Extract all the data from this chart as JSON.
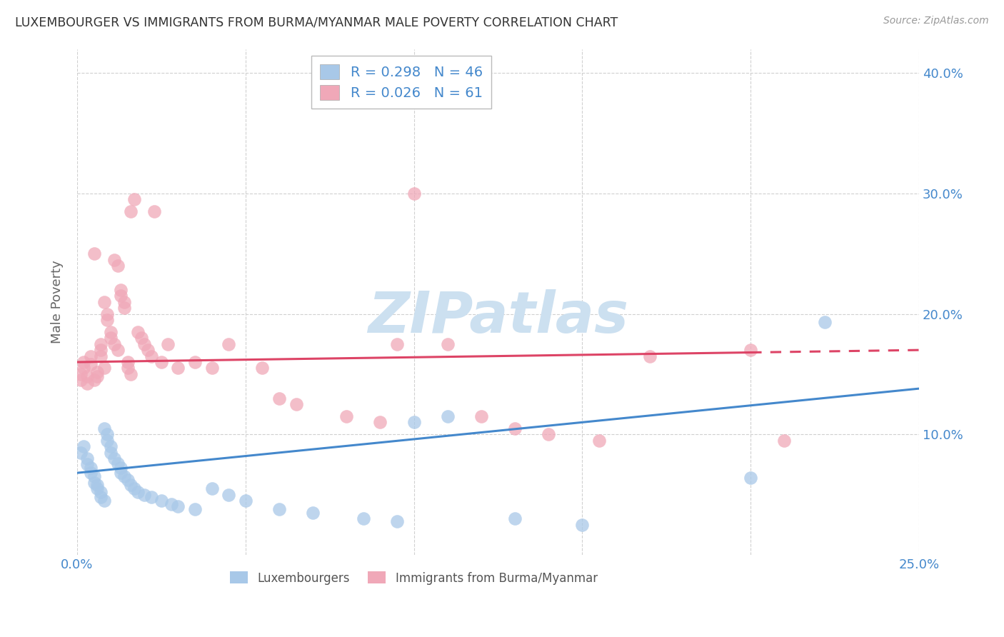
{
  "title": "LUXEMBOURGER VS IMMIGRANTS FROM BURMA/MYANMAR MALE POVERTY CORRELATION CHART",
  "source": "Source: ZipAtlas.com",
  "ylabel": "Male Poverty",
  "xlim": [
    0.0,
    0.25
  ],
  "ylim": [
    0.0,
    0.42
  ],
  "background_color": "#ffffff",
  "grid_color": "#d0d0d0",
  "blue_color": "#a8c8e8",
  "pink_color": "#f0a8b8",
  "blue_line_color": "#4488cc",
  "pink_line_color": "#dd4466",
  "watermark_text": "ZIPatlas",
  "watermark_color": "#cce0f0",
  "legend_top": [
    "R = 0.298   N = 46",
    "R = 0.026   N = 61"
  ],
  "bottom_legend": [
    "Luxembourgers",
    "Immigrants from Burma/Myanmar"
  ],
  "blue_x": [
    0.001,
    0.002,
    0.003,
    0.003,
    0.004,
    0.004,
    0.005,
    0.005,
    0.006,
    0.006,
    0.007,
    0.007,
    0.008,
    0.008,
    0.009,
    0.009,
    0.01,
    0.01,
    0.011,
    0.012,
    0.013,
    0.013,
    0.014,
    0.015,
    0.016,
    0.017,
    0.018,
    0.02,
    0.022,
    0.025,
    0.028,
    0.03,
    0.035,
    0.04,
    0.045,
    0.05,
    0.06,
    0.07,
    0.085,
    0.095,
    0.1,
    0.11,
    0.13,
    0.15,
    0.2,
    0.222
  ],
  "blue_y": [
    0.085,
    0.09,
    0.08,
    0.075,
    0.072,
    0.068,
    0.065,
    0.06,
    0.058,
    0.055,
    0.052,
    0.048,
    0.045,
    0.105,
    0.1,
    0.095,
    0.09,
    0.085,
    0.08,
    0.076,
    0.072,
    0.068,
    0.065,
    0.062,
    0.058,
    0.055,
    0.052,
    0.05,
    0.048,
    0.045,
    0.042,
    0.04,
    0.038,
    0.055,
    0.05,
    0.045,
    0.038,
    0.035,
    0.03,
    0.028,
    0.11,
    0.115,
    0.03,
    0.025,
    0.064,
    0.193
  ],
  "pink_x": [
    0.001,
    0.001,
    0.002,
    0.002,
    0.003,
    0.003,
    0.004,
    0.004,
    0.005,
    0.005,
    0.006,
    0.006,
    0.007,
    0.007,
    0.007,
    0.008,
    0.008,
    0.009,
    0.009,
    0.01,
    0.01,
    0.011,
    0.011,
    0.012,
    0.012,
    0.013,
    0.013,
    0.014,
    0.014,
    0.015,
    0.015,
    0.016,
    0.016,
    0.017,
    0.018,
    0.019,
    0.02,
    0.021,
    0.022,
    0.023,
    0.025,
    0.027,
    0.03,
    0.035,
    0.04,
    0.045,
    0.055,
    0.06,
    0.065,
    0.08,
    0.09,
    0.095,
    0.1,
    0.11,
    0.12,
    0.13,
    0.14,
    0.155,
    0.17,
    0.2,
    0.21
  ],
  "pink_y": [
    0.15,
    0.145,
    0.16,
    0.155,
    0.148,
    0.142,
    0.165,
    0.158,
    0.25,
    0.145,
    0.152,
    0.148,
    0.175,
    0.17,
    0.165,
    0.21,
    0.155,
    0.2,
    0.195,
    0.185,
    0.18,
    0.245,
    0.175,
    0.24,
    0.17,
    0.22,
    0.215,
    0.21,
    0.205,
    0.16,
    0.155,
    0.285,
    0.15,
    0.295,
    0.185,
    0.18,
    0.175,
    0.17,
    0.165,
    0.285,
    0.16,
    0.175,
    0.155,
    0.16,
    0.155,
    0.175,
    0.155,
    0.13,
    0.125,
    0.115,
    0.11,
    0.175,
    0.3,
    0.175,
    0.115,
    0.105,
    0.1,
    0.095,
    0.165,
    0.17,
    0.095
  ],
  "blue_trend_x": [
    0.0,
    0.25
  ],
  "blue_trend_y": [
    0.068,
    0.138
  ],
  "pink_trend_x": [
    0.0,
    0.2,
    0.25
  ],
  "pink_trend_solid_end": 0.2,
  "pink_trend_y_start": 0.16,
  "pink_trend_y_end": 0.17
}
